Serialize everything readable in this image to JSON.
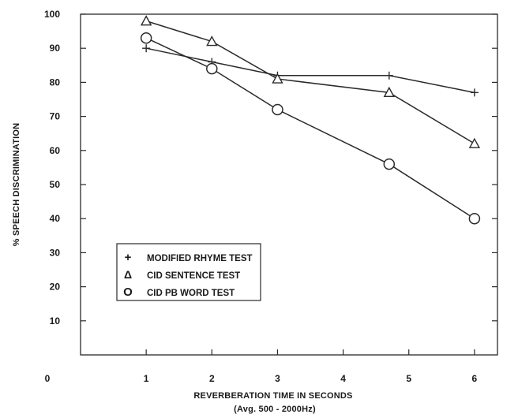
{
  "chart_data": {
    "type": "line",
    "xlabel": "REVERBERATION TIME IN SECONDS",
    "xlabel_sub": "(Avg. 500 -   2000Hz)",
    "ylabel": "% SPEECH DISCRIMINATION",
    "xlim": [
      0,
      6.35
    ],
    "ylim": [
      0,
      100
    ],
    "x_ticks": [
      {
        "value": 1,
        "label": "1"
      },
      {
        "value": 2,
        "label": "2"
      },
      {
        "value": 3,
        "label": "3"
      },
      {
        "value": 4,
        "label": "4"
      },
      {
        "value": 5,
        "label": "5"
      },
      {
        "value": 6,
        "label": "6"
      }
    ],
    "x_origin_label": "0",
    "y_ticks": [
      {
        "value": 10,
        "label": "10"
      },
      {
        "value": 20,
        "label": "20"
      },
      {
        "value": 30,
        "label": "30"
      },
      {
        "value": 40,
        "label": "40"
      },
      {
        "value": 50,
        "label": "50"
      },
      {
        "value": 60,
        "label": "60"
      },
      {
        "value": 70,
        "label": "70"
      },
      {
        "value": 80,
        "label": "80"
      },
      {
        "value": 90,
        "label": "90"
      },
      {
        "value": 100,
        "label": "100"
      }
    ],
    "grid": false,
    "legend_position": "bottom-left",
    "series": [
      {
        "name": "MODIFIED RHYME TEST",
        "marker": "plus",
        "x": [
          1,
          2,
          3,
          4.7,
          6
        ],
        "y": [
          90,
          86,
          82,
          82,
          77
        ]
      },
      {
        "name": "CID SENTENCE TEST",
        "marker": "triangle",
        "x": [
          1,
          2,
          3,
          4.7,
          6
        ],
        "y": [
          98,
          92,
          81,
          77,
          62
        ]
      },
      {
        "name": "CID PB WORD TEST",
        "marker": "circle",
        "x": [
          1,
          2,
          3,
          4.7,
          6
        ],
        "y": [
          93,
          84,
          72,
          56,
          40
        ]
      }
    ],
    "legend_symbols": {
      "plus": "+",
      "triangle": "Δ",
      "circle": "O"
    },
    "line_color": "#2a2a2a"
  }
}
